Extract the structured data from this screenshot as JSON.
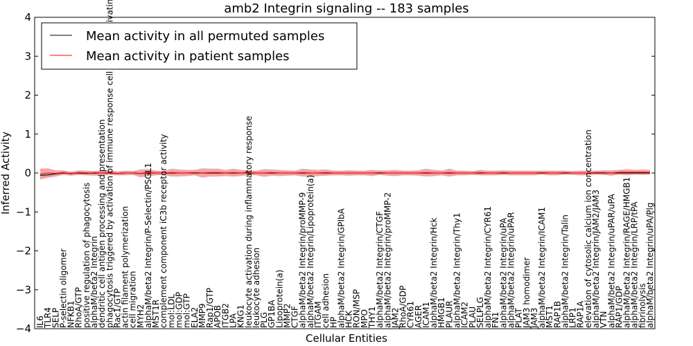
{
  "chart_data": {
    "type": "line",
    "title": "amb2 Integrin signaling -- 183 samples",
    "xlabel": "Cellular Entities",
    "ylabel": "Inferred Activity",
    "ylim": [
      -4,
      4
    ],
    "yticks": [
      -4,
      -3,
      -2,
      -1,
      0,
      1,
      2,
      3,
      4
    ],
    "grid": false,
    "legend_position": "top-left",
    "categories": [
      "IL6",
      "TLR4",
      "SELP",
      "P-selectin oligomer",
      "NFKB1",
      "RhoA/GTP",
      "positive regulation of phagocytosis",
      "alphaM/beta2 Integrin",
      "dendritic cell antigen processing and presentation",
      "phagocytosis triggered by activation of immune response cell surface activating receptor",
      "Rac1/GTP",
      "actin filament polymerization",
      "cell migration",
      "MYH2",
      "alphaM/beta2 Integrin/P-Selectin/PSGL1",
      "MST1R",
      "complement component iC3b receptor activity",
      "mol:LDL",
      "mol:GDP",
      "mol:GTP",
      "ELA2",
      "MMP9",
      "Rap1/GTP",
      "APOB",
      "ITGB2",
      "LPA",
      "KNG1",
      "leukocyte activation during inflammatory response",
      "leukocyte adhesion",
      "PLG",
      "GP1BA",
      "Lipoprotein(a)",
      "MMP2",
      "CTGF",
      "alphaM/beta2 Integrin/proMMP-9",
      "alphaM/beta2 Integrin/Lipoprotein(a)",
      "ITGAM",
      "cell adhesion",
      "HP",
      "alphaM/beta2 Integrin/GPIbA",
      "HCK",
      "RON/MSP",
      "MPO",
      "THY1",
      "alphaM/beta2 Integrin/CTGF",
      "alphaM/beta2 Integrin/proMMP-2",
      "JAM2",
      "RhoA/GDP",
      "CYR61",
      "AGER",
      "ICAM1",
      "alphaM/beta2 Integrin/Hck",
      "HMGB1",
      "PLAUR",
      "alphaM/beta2 Integrin/Thy1",
      "ICAM2",
      "PLAU",
      "SELPLG",
      "alphaM/beta2 Integrin/CYR61",
      "FN1",
      "alphaM/beta2 Integrin/uPA",
      "alphaM/beta2 Integrin/uPAR",
      "PLAT",
      "JAM3 homodimer",
      "JAM3",
      "alphaM/beta2 Integrin/ICAM1",
      "MST1",
      "RAP1B",
      "alphaM/beta2 Integrin/Talin",
      "LRP1",
      "RAP1A",
      "elevation of cytosolic calcium ion concentration",
      "alphaM/beta2 Integrin/JAM2/JAM3",
      "VTN",
      "alphaM/beta2 Integrin/uPAR/uPA",
      "RAP1/GDP",
      "alphaM/beta2 Integrin/RAGE/HMGB1",
      "alphaM/beta2 Integrin/LRP/tPA",
      "fibrinolysis",
      "alphaM/beta2 Integrin/uPA/Plg"
    ],
    "series": [
      {
        "name": "Mean activity in all permuted samples",
        "color": "#000000",
        "values": [
          -0.06,
          -0.05,
          -0.02,
          0,
          -0.01,
          0,
          -0.01,
          0,
          0,
          0,
          -0.01,
          0,
          0,
          -0.01,
          0,
          0,
          0,
          0,
          0,
          0,
          0,
          0,
          0,
          0,
          0,
          0,
          0,
          0,
          0,
          0,
          0,
          0,
          0,
          0,
          0,
          0,
          0,
          0,
          0,
          0,
          0,
          0,
          0,
          0,
          0,
          0,
          0,
          0,
          0,
          0,
          0,
          0,
          0,
          0,
          0,
          0,
          0,
          0,
          0,
          0,
          0,
          0,
          0,
          0,
          0,
          0,
          0,
          0,
          0,
          0,
          0,
          0,
          0,
          0,
          0,
          0,
          0,
          0,
          0,
          0
        ]
      },
      {
        "name": "Mean activity in patient samples",
        "color": "#ff0000",
        "values": [
          -0.03,
          0,
          -0.01,
          0.01,
          -0.02,
          0.01,
          0,
          -0.01,
          0,
          0.01,
          -0.01,
          0,
          0,
          -0.01,
          0.01,
          0,
          0,
          0.01,
          0,
          0,
          0.01,
          0,
          0.01,
          0.01,
          0,
          0.01,
          0,
          0.01,
          0,
          0,
          0.01,
          0,
          0,
          0,
          0.01,
          0,
          0,
          0.01,
          0,
          0,
          0,
          0,
          0,
          0,
          0.01,
          0,
          0,
          0,
          0,
          0,
          0.01,
          0,
          0,
          0.01,
          0,
          0,
          0,
          0.01,
          0,
          0,
          0.01,
          0,
          0,
          0,
          0,
          0.01,
          0,
          0,
          0.01,
          0,
          0,
          0,
          0.01,
          0.01,
          0,
          0.02,
          0.02,
          0.02,
          0.02,
          0.02
        ]
      }
    ],
    "patient_band_halfwidth": [
      0.14,
      0.12,
      0.08,
      0.06,
      0.05,
      0.06,
      0.06,
      0.06,
      0.07,
      0.06,
      0.05,
      0.06,
      0.05,
      0.1,
      0.09,
      0.06,
      0.05,
      0.1,
      0.09,
      0.08,
      0.07,
      0.12,
      0.1,
      0.1,
      0.08,
      0.1,
      0.08,
      0.06,
      0.06,
      0.1,
      0.08,
      0.08,
      0.07,
      0.06,
      0.1,
      0.09,
      0.08,
      0.08,
      0.06,
      0.06,
      0.07,
      0.06,
      0.06,
      0.08,
      0.06,
      0.07,
      0.08,
      0.06,
      0.06,
      0.07,
      0.1,
      0.08,
      0.06,
      0.1,
      0.06,
      0.06,
      0.05,
      0.07,
      0.06,
      0.06,
      0.06,
      0.06,
      0.06,
      0.06,
      0.06,
      0.05,
      0.06,
      0.06,
      0.05,
      0.05,
      0.06,
      0.06,
      0.05,
      0.06,
      0.07,
      0.06,
      0.08,
      0.06,
      0.07,
      0.06
    ],
    "permuted_band_halfwidth": 0.04,
    "band_colors": {
      "patient": "#f08080",
      "permuted": "#b0b8d0"
    }
  }
}
